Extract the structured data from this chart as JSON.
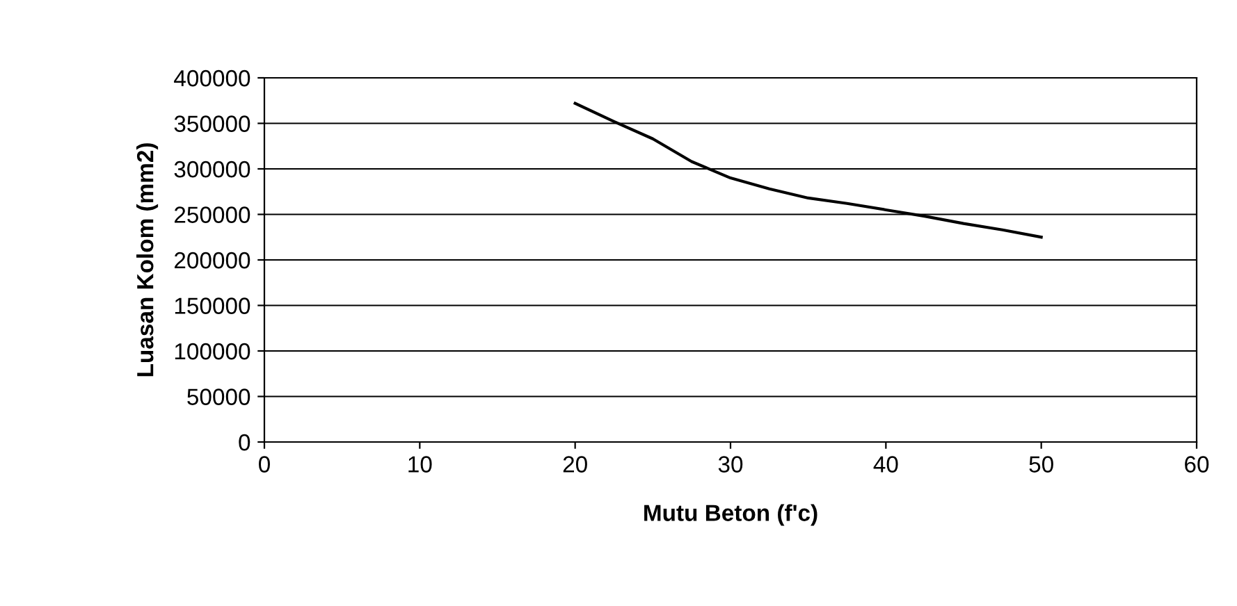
{
  "chart_data": {
    "type": "line",
    "xlabel": "Mutu Beton (f'c)",
    "ylabel": "Luasan Kolom (mm2)",
    "series": [
      {
        "color": "#000000",
        "x": [
          20,
          22.5,
          25,
          27.5,
          30,
          32.5,
          35,
          37.5,
          40,
          42.5,
          45,
          47.5,
          50
        ],
        "values": [
          372000,
          352000,
          333000,
          308000,
          290000,
          278000,
          268000,
          262000,
          255000,
          248000,
          240000,
          233000,
          225000
        ]
      }
    ],
    "xlim": [
      0,
      60
    ],
    "xticks": [
      0,
      10,
      20,
      30,
      40,
      50,
      60
    ],
    "ylim": [
      0,
      400000
    ],
    "yticks": [
      0,
      50000,
      100000,
      150000,
      200000,
      250000,
      300000,
      350000,
      400000
    ],
    "grid": "y",
    "legend": false,
    "marker": "none",
    "line_style": "solid"
  }
}
